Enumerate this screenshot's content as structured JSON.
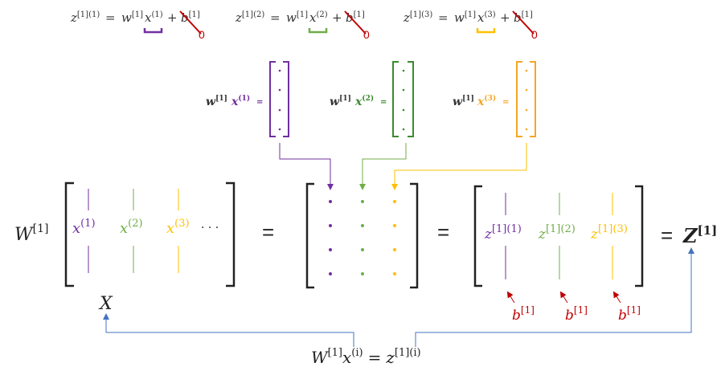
{
  "colors": {
    "ink": "#333333",
    "purple": "#7030a0",
    "green": "#70ad47",
    "green_dark": "#3b8a2e",
    "orange": "#ffc000",
    "orange_dark": "#f5a623",
    "red": "#c00000",
    "blue": "#4472c4"
  },
  "top_equations": [
    {
      "z": "z",
      "z_sup": "[1](1)",
      "eq": "=",
      "w": "w",
      "w_sup": "[1]",
      "x": "x",
      "x_sup": "(1)",
      "plus": "+",
      "b": "b",
      "b_sup": "[1]",
      "cancel_value": "0",
      "accent": "purple"
    },
    {
      "z": "z",
      "z_sup": "[1](2)",
      "eq": "=",
      "w": "w",
      "w_sup": "[1]",
      "x": "x",
      "x_sup": "(2)",
      "plus": "+",
      "b": "b",
      "b_sup": "[1]",
      "cancel_value": "0",
      "accent": "green"
    },
    {
      "z": "z",
      "z_sup": "[1](3)",
      "eq": "=",
      "w": "w",
      "w_sup": "[1]",
      "x": "x",
      "x_sup": "(3)",
      "plus": "+",
      "b": "b",
      "b_sup": "[1]",
      "cancel_value": "0",
      "accent": "orange"
    }
  ],
  "column_products": [
    {
      "w": "w",
      "w_sup": "[1]",
      "x": "x",
      "x_sup": "(1)",
      "eq": "=",
      "accent": "purple"
    },
    {
      "w": "w",
      "w_sup": "[1]",
      "x": "x",
      "x_sup": "(2)",
      "eq": "=",
      "accent": "green_dark"
    },
    {
      "w": "w",
      "w_sup": "[1]",
      "x": "x",
      "x_sup": "(3)",
      "eq": "=",
      "accent": "orange_dark"
    }
  ],
  "main_equation": {
    "W": "W",
    "W_sup": "[1]",
    "X_columns": [
      {
        "x": "x",
        "sup": "(1)",
        "accent": "purple"
      },
      {
        "x": "x",
        "sup": "(2)",
        "accent": "green"
      },
      {
        "x": "x",
        "sup": "(3)",
        "accent": "orange"
      }
    ],
    "ellipsis": "· · ·",
    "eq1": "=",
    "eq2": "=",
    "Z_columns": [
      {
        "z": "z",
        "sup": "[1](1)",
        "accent": "purple"
      },
      {
        "z": "z",
        "sup": "[1](2)",
        "accent": "green"
      },
      {
        "z": "z",
        "sup": "[1](3)",
        "accent": "orange"
      }
    ],
    "eq3": "=",
    "Z": "Z",
    "Z_sup": "[1]",
    "X_label": "X"
  },
  "bias_labels": [
    {
      "b": "b",
      "sup": "[1]"
    },
    {
      "b": "b",
      "sup": "[1]"
    },
    {
      "b": "b",
      "sup": "[1]"
    }
  ],
  "bottom_equation": {
    "W": "W",
    "W_sup": "[1]",
    "x": "x",
    "x_sup": "(i)",
    "eq": "=",
    "z": "z",
    "z_sup": "[1](i)"
  }
}
